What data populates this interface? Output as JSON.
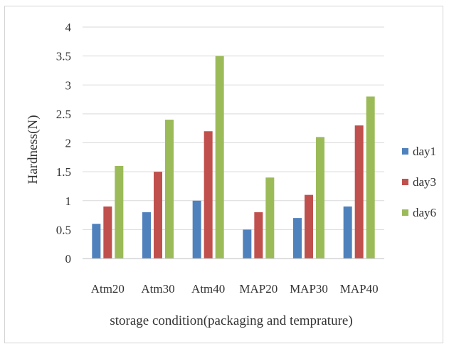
{
  "chart_data": {
    "type": "bar",
    "title": "",
    "xlabel": "storage condition(packaging and temprature)",
    "ylabel": "Hardness(N)",
    "ylim": [
      0,
      4
    ],
    "yticks": [
      "0",
      "0.5",
      "1",
      "1.5",
      "2",
      "2.5",
      "3",
      "3.5",
      "4"
    ],
    "grid": true,
    "legend_position": "right",
    "categories": [
      "Atm20",
      "Atm30",
      "Atm40",
      "MAP20",
      "MAP30",
      "MAP40"
    ],
    "series": [
      {
        "name": "day1",
        "color": "#4f81bd",
        "values": [
          0.6,
          0.8,
          1.0,
          0.5,
          0.7,
          0.9
        ]
      },
      {
        "name": "day3",
        "color": "#c0504d",
        "values": [
          0.9,
          1.5,
          2.2,
          0.8,
          1.1,
          2.3
        ]
      },
      {
        "name": "day6",
        "color": "#9bbb59",
        "values": [
          1.6,
          2.4,
          3.5,
          1.4,
          2.1,
          2.8
        ]
      }
    ]
  }
}
